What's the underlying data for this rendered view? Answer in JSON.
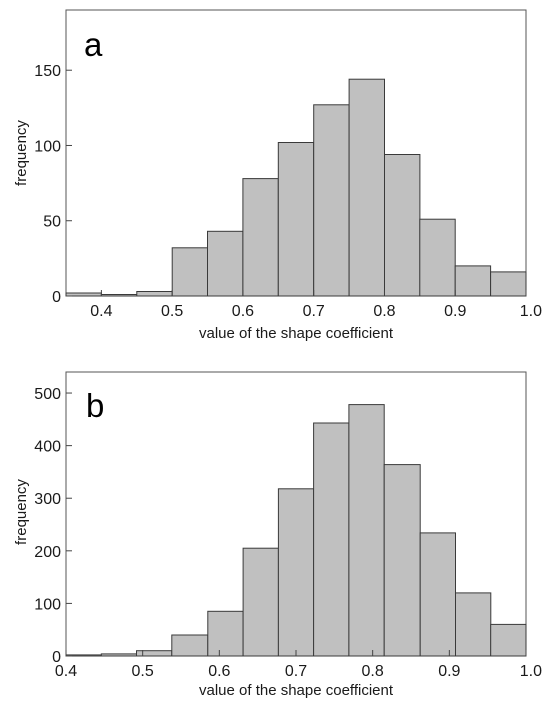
{
  "chart_data": [
    {
      "type": "bar",
      "panel_label": "a",
      "xlabel": "value of the shape coefficient",
      "ylabel": "frequency",
      "xlim": [
        0.35,
        1.0
      ],
      "ylim": [
        0,
        190
      ],
      "xticks": [
        "0.4",
        "0.5",
        "0.6",
        "0.7",
        "0.8",
        "0.9",
        "1.0"
      ],
      "yticks": [
        "0",
        "50",
        "100",
        "150"
      ],
      "bins": [
        {
          "x0": 0.35,
          "x1": 0.4,
          "value": 2
        },
        {
          "x0": 0.4,
          "x1": 0.45,
          "value": 1
        },
        {
          "x0": 0.45,
          "x1": 0.5,
          "value": 3
        },
        {
          "x0": 0.5,
          "x1": 0.55,
          "value": 32
        },
        {
          "x0": 0.55,
          "x1": 0.6,
          "value": 43
        },
        {
          "x0": 0.6,
          "x1": 0.65,
          "value": 78
        },
        {
          "x0": 0.65,
          "x1": 0.7,
          "value": 102
        },
        {
          "x0": 0.7,
          "x1": 0.75,
          "value": 127
        },
        {
          "x0": 0.75,
          "x1": 0.8,
          "value": 144
        },
        {
          "x0": 0.8,
          "x1": 0.85,
          "value": 94
        },
        {
          "x0": 0.85,
          "x1": 0.9,
          "value": 51
        },
        {
          "x0": 0.9,
          "x1": 0.95,
          "value": 20
        },
        {
          "x0": 0.95,
          "x1": 1.0,
          "value": 16
        }
      ]
    },
    {
      "type": "bar",
      "panel_label": "b",
      "xlabel": "value of the shape coefficient",
      "ylabel": "frequency",
      "xlim": [
        0.4,
        1.0
      ],
      "ylim": [
        0,
        540
      ],
      "xticks": [
        "0.4",
        "0.5",
        "0.6",
        "0.7",
        "0.8",
        "0.9",
        "1.0"
      ],
      "yticks": [
        "0",
        "100",
        "200",
        "300",
        "400",
        "500"
      ],
      "bins": [
        {
          "x0": 0.4,
          "x1": 0.446,
          "value": 2
        },
        {
          "x0": 0.446,
          "x1": 0.492,
          "value": 4
        },
        {
          "x0": 0.492,
          "x1": 0.538,
          "value": 10
        },
        {
          "x0": 0.538,
          "x1": 0.585,
          "value": 40
        },
        {
          "x0": 0.585,
          "x1": 0.631,
          "value": 85
        },
        {
          "x0": 0.631,
          "x1": 0.677,
          "value": 205
        },
        {
          "x0": 0.677,
          "x1": 0.723,
          "value": 318
        },
        {
          "x0": 0.723,
          "x1": 0.769,
          "value": 443
        },
        {
          "x0": 0.769,
          "x1": 0.815,
          "value": 478
        },
        {
          "x0": 0.815,
          "x1": 0.862,
          "value": 364
        },
        {
          "x0": 0.862,
          "x1": 0.908,
          "value": 234
        },
        {
          "x0": 0.908,
          "x1": 0.954,
          "value": 120
        },
        {
          "x0": 0.954,
          "x1": 1.0,
          "value": 60
        }
      ]
    }
  ]
}
